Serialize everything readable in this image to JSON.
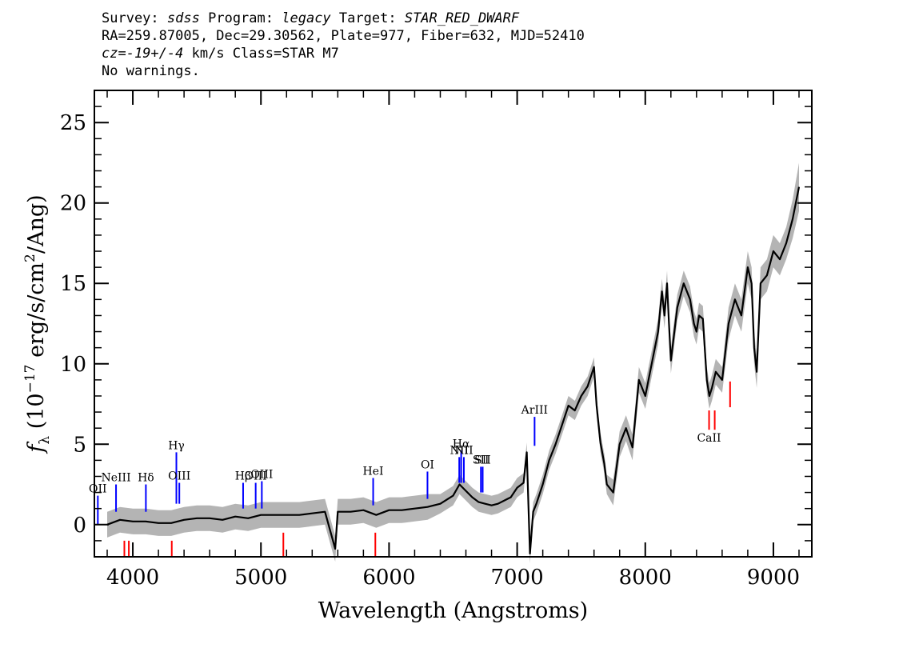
{
  "header": {
    "survey_label": "Survey:",
    "survey": "sdss",
    "program_label": "Program:",
    "program": "legacy",
    "target_label": "Target:",
    "target": "STAR_RED_DWARF",
    "line2": "RA=259.87005, Dec=29.30562, Plate=977, Fiber=632, MJD=52410",
    "cz_label": "cz=",
    "cz_value": "-19+/-4",
    "cz_unit": " km/s Class=STAR M7",
    "warnings": "No warnings."
  },
  "colors": {
    "flux": "#000000",
    "error": "#b4b4b4",
    "emission": "#0000ff",
    "absorption": "#ff0000"
  },
  "chart_data": {
    "type": "line",
    "xlabel": "Wavelength (Angstroms)",
    "ylabel_prefix": "f",
    "ylabel_sub": "λ",
    "ylabel_text": " (10",
    "ylabel_exp": "−17",
    "ylabel_units": " erg/s/cm",
    "ylabel_exp2": "2",
    "ylabel_tail": "/Ang)",
    "xlim": [
      3700,
      9300
    ],
    "ylim": [
      -2,
      27
    ],
    "xticks": [
      4000,
      5000,
      6000,
      7000,
      8000,
      9000
    ],
    "xtick_labels": [
      "4000",
      "5000",
      "6000",
      "7000",
      "8000",
      "9000"
    ],
    "yticks": [
      0,
      5,
      10,
      15,
      20,
      25
    ],
    "ytick_labels": [
      "0",
      "5",
      "10",
      "15",
      "20",
      "25"
    ],
    "spectrum": {
      "x": [
        3800,
        3900,
        4000,
        4100,
        4200,
        4300,
        4400,
        4500,
        4600,
        4700,
        4800,
        4900,
        5000,
        5100,
        5200,
        5300,
        5400,
        5500,
        5580,
        5600,
        5700,
        5800,
        5900,
        6000,
        6100,
        6200,
        6300,
        6400,
        6500,
        6550,
        6600,
        6650,
        6700,
        6750,
        6800,
        6850,
        6900,
        6950,
        7000,
        7050,
        7075,
        7100,
        7125,
        7150,
        7200,
        7250,
        7300,
        7350,
        7400,
        7450,
        7500,
        7550,
        7600,
        7620,
        7650,
        7680,
        7700,
        7750,
        7800,
        7850,
        7900,
        7950,
        8000,
        8050,
        8100,
        8130,
        8150,
        8170,
        8185,
        8200,
        8250,
        8300,
        8350,
        8380,
        8400,
        8420,
        8450,
        8480,
        8500,
        8520,
        8550,
        8600,
        8650,
        8700,
        8750,
        8800,
        8830,
        8850,
        8870,
        8900,
        8950,
        9000,
        9050,
        9100,
        9150,
        9200
      ],
      "y": [
        0.0,
        0.3,
        0.2,
        0.2,
        0.1,
        0.1,
        0.3,
        0.4,
        0.4,
        0.3,
        0.5,
        0.4,
        0.6,
        0.6,
        0.6,
        0.6,
        0.7,
        0.8,
        -1.5,
        0.8,
        0.8,
        0.9,
        0.6,
        0.9,
        0.9,
        1.0,
        1.1,
        1.3,
        1.8,
        2.5,
        2.1,
        1.7,
        1.4,
        1.3,
        1.2,
        1.3,
        1.5,
        1.7,
        2.3,
        2.6,
        4.5,
        -1.8,
        0.8,
        1.3,
        2.5,
        4.0,
        5.0,
        6.2,
        7.4,
        7.1,
        8.0,
        8.6,
        9.8,
        7.4,
        5.1,
        3.8,
        2.5,
        2.0,
        5.0,
        6.0,
        4.8,
        9.0,
        8.0,
        10.0,
        12.0,
        14.5,
        13.0,
        15.0,
        12.5,
        10.2,
        13.5,
        15.0,
        14.0,
        12.5,
        12.0,
        13.0,
        12.8,
        9.0,
        8.0,
        8.5,
        9.5,
        9.0,
        12.5,
        14.0,
        13.0,
        16.0,
        15.0,
        11.0,
        9.5,
        15.0,
        15.5,
        17.0,
        16.5,
        17.5,
        19.0,
        21.0
      ]
    },
    "error_band": [
      0.8,
      0.8,
      0.8,
      0.8,
      0.8,
      0.8,
      0.8,
      0.8,
      0.8,
      0.8,
      0.8,
      0.8,
      0.8,
      0.8,
      0.8,
      0.8,
      0.8,
      0.8,
      0.8,
      0.8,
      0.8,
      0.8,
      0.8,
      0.8,
      0.8,
      0.8,
      0.8,
      0.6,
      0.6,
      0.6,
      0.6,
      0.6,
      0.6,
      0.6,
      0.6,
      0.6,
      0.6,
      0.6,
      0.6,
      0.6,
      0.6,
      0.6,
      0.6,
      0.6,
      0.6,
      0.6,
      0.6,
      0.6,
      0.6,
      0.6,
      0.6,
      0.6,
      0.6,
      0.6,
      0.6,
      0.6,
      0.6,
      0.8,
      0.8,
      0.8,
      0.8,
      0.8,
      0.8,
      0.8,
      0.8,
      0.8,
      0.8,
      0.8,
      0.8,
      0.8,
      0.8,
      0.8,
      0.8,
      0.8,
      0.8,
      0.8,
      0.8,
      0.8,
      0.8,
      0.8,
      0.8,
      0.8,
      1.0,
      1.0,
      1.0,
      1.0,
      1.0,
      1.0,
      1.0,
      1.0,
      1.0,
      1.0,
      1.0,
      1.0,
      1.2,
      1.5
    ],
    "emission_lines": [
      {
        "label": "OII",
        "x": 3727,
        "y0": 0.0,
        "y1": 1.8
      },
      {
        "label": "NeIII",
        "x": 3869,
        "y0": 0.8,
        "y1": 2.5
      },
      {
        "label": "Hδ",
        "x": 4102,
        "y0": 0.8,
        "y1": 2.5
      },
      {
        "label": "Hγ",
        "x": 4340,
        "y0": 1.3,
        "y1": 4.5
      },
      {
        "label": "OIII",
        "x": 4363,
        "y0": 1.3,
        "y1": 2.6
      },
      {
        "label": "Hβ",
        "x": 4861,
        "y0": 1.0,
        "y1": 2.6
      },
      {
        "label": "OIII",
        "x": 4959,
        "y0": 1.0,
        "y1": 2.6
      },
      {
        "label": "OIII",
        "x": 5007,
        "y0": 1.0,
        "y1": 2.7
      },
      {
        "label": "HeI",
        "x": 5876,
        "y0": 1.2,
        "y1": 2.9
      },
      {
        "label": "OI",
        "x": 6300,
        "y0": 1.6,
        "y1": 3.3
      },
      {
        "label": "NII",
        "x": 6548,
        "y0": 2.6,
        "y1": 4.2
      },
      {
        "label": "Hα",
        "x": 6563,
        "y0": 2.6,
        "y1": 4.6
      },
      {
        "label": "NII",
        "x": 6584,
        "y0": 2.6,
        "y1": 4.2
      },
      {
        "label": "SII",
        "x": 6717,
        "y0": 2.0,
        "y1": 3.6
      },
      {
        "label": "SII",
        "x": 6731,
        "y0": 2.0,
        "y1": 3.6
      },
      {
        "label": "ArIII",
        "x": 7136,
        "y0": 4.9,
        "y1": 6.7
      }
    ],
    "absorption_lines": [
      {
        "label": "",
        "x": 3934,
        "y0": -2.0,
        "y1": -1.0
      },
      {
        "label": "",
        "x": 3969,
        "y0": -2.0,
        "y1": -1.0
      },
      {
        "label": "",
        "x": 4304,
        "y0": -2.0,
        "y1": -1.0
      },
      {
        "label": "",
        "x": 5175,
        "y0": -2.0,
        "y1": -0.5
      },
      {
        "label": "",
        "x": 5893,
        "y0": -2.0,
        "y1": -0.5
      },
      {
        "label": "CaII",
        "x": 8498,
        "y0": 5.9,
        "y1": 7.1
      },
      {
        "label": "",
        "x": 8542,
        "y0": 5.9,
        "y1": 7.1
      },
      {
        "label": "",
        "x": 8662,
        "y0": 7.3,
        "y1": 8.9
      }
    ]
  }
}
